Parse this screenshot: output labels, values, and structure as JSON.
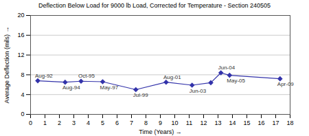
{
  "chart_data": {
    "type": "line",
    "title": "Deflection Below Load for 9000 lb Load, Corrected for Temperature - Section 240505",
    "xlabel": "Time (Years)",
    "ylabel": "Average Deflection (mils)",
    "x": [
      0.5,
      2.4,
      3.5,
      5.0,
      7.3,
      9.4,
      11.2,
      12.5,
      13.2,
      13.8,
      17.3
    ],
    "values": [
      6.8,
      6.5,
      6.7,
      6.6,
      5.0,
      6.5,
      5.9,
      6.4,
      8.4,
      7.9,
      7.2
    ],
    "color": "#3333aa",
    "marker": "diamond",
    "xlim": [
      0,
      18
    ],
    "ylim": [
      0,
      20
    ],
    "xticks": [
      0,
      1,
      2,
      3,
      4,
      5,
      6,
      7,
      8,
      9,
      10,
      11,
      12,
      13,
      14,
      15,
      16,
      17,
      18
    ],
    "yticks": [
      0,
      4,
      8,
      12,
      16,
      20
    ],
    "grid": "y",
    "annotations": [
      {
        "text": "Aug-92",
        "x": 0.5,
        "y": 6.8
      },
      {
        "text": "Aug-94",
        "x": 2.4,
        "y": 6.5
      },
      {
        "text": "Oct-95",
        "x": 3.5,
        "y": 6.7
      },
      {
        "text": "May-97",
        "x": 5.0,
        "y": 6.6
      },
      {
        "text": "Jul-99",
        "x": 7.3,
        "y": 5.0
      },
      {
        "text": "Aug-01",
        "x": 9.4,
        "y": 6.5
      },
      {
        "text": "Jun-03",
        "x": 11.2,
        "y": 5.9
      },
      {
        "text": "Jun-04",
        "x": 13.2,
        "y": 8.4
      },
      {
        "text": "May-05",
        "x": 13.8,
        "y": 7.9
      },
      {
        "text": "Apr-09",
        "x": 17.3,
        "y": 7.2
      }
    ]
  }
}
